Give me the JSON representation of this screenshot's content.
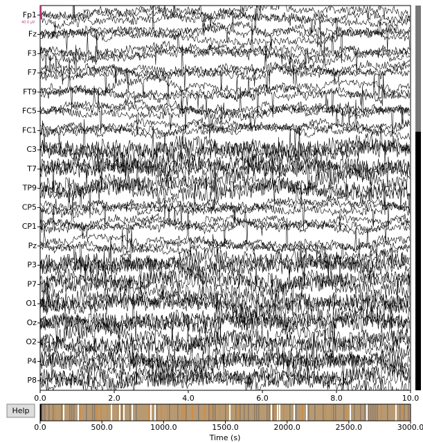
{
  "channels": [
    "Fp1",
    "Fz",
    "F3",
    "F7",
    "FT9",
    "FC5",
    "FC1",
    "C3",
    "T7",
    "TP9",
    "CP5",
    "CP1",
    "Pz",
    "P3",
    "P7",
    "O1",
    "Oz",
    "O2",
    "P4",
    "P8"
  ],
  "scale_label": "40.0 µV",
  "main_axis": {
    "xlim": [
      0,
      10
    ],
    "xticks": [
      {
        "value": 0,
        "label": "0.0"
      },
      {
        "value": 2,
        "label": "2.0"
      },
      {
        "value": 4,
        "label": "4.0"
      },
      {
        "value": 6,
        "label": "6.0"
      },
      {
        "value": 8,
        "label": "8.0"
      },
      {
        "value": 10,
        "label": "10.0"
      }
    ]
  },
  "overview_axis": {
    "xlim": [
      0,
      3000
    ],
    "xticks": [
      {
        "value": 0,
        "label": "0.0"
      },
      {
        "value": 500,
        "label": "500.0"
      },
      {
        "value": 1000,
        "label": "1000.0"
      },
      {
        "value": 1500,
        "label": "1500.0"
      },
      {
        "value": 2000,
        "label": "2000.0"
      },
      {
        "value": 2500,
        "label": "2500.0"
      },
      {
        "value": 3000,
        "label": "3000.0"
      }
    ],
    "xlabel": "Time (s)"
  },
  "help_button": "Help"
}
